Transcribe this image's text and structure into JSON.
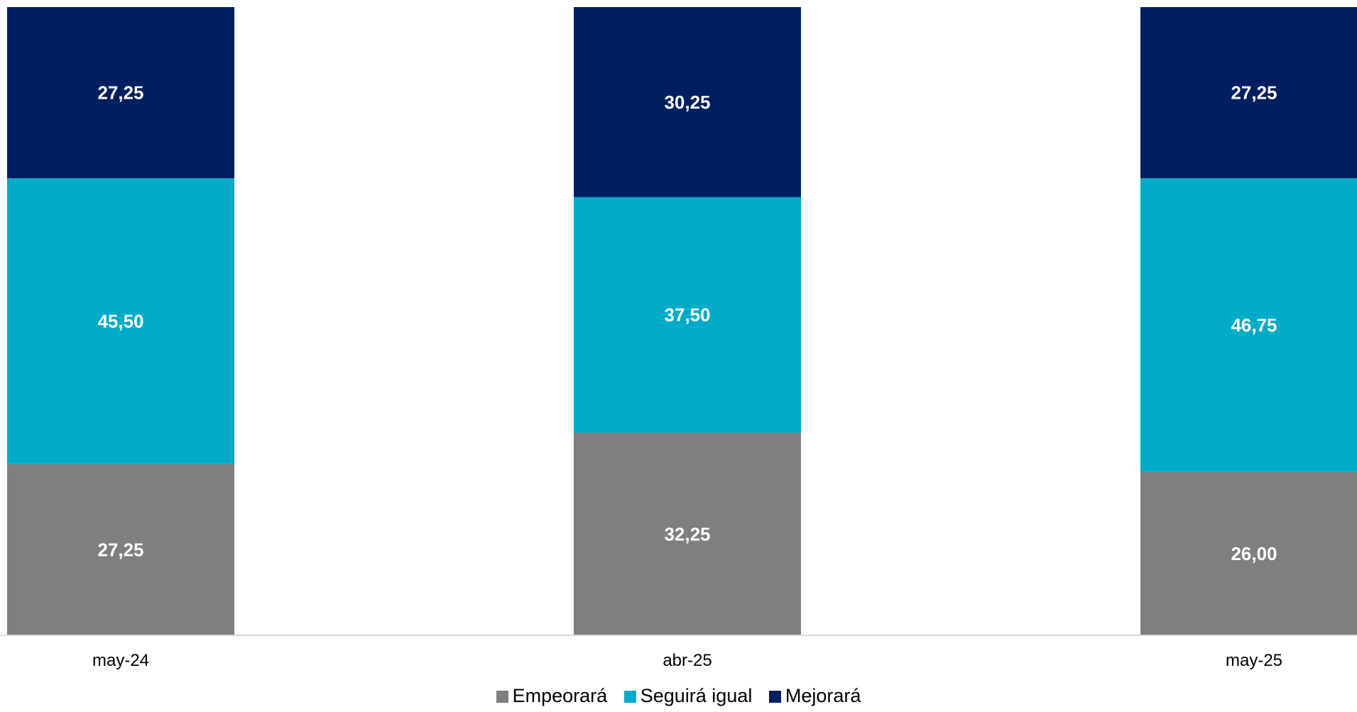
{
  "chart_data": {
    "type": "bar",
    "stacked": true,
    "categories": [
      "may-24",
      "abr-25",
      "may-25"
    ],
    "series": [
      {
        "name": "Empeorará",
        "color": "#7f7f7f",
        "values": [
          27.25,
          32.25,
          26.0
        ],
        "labels": [
          "27,25",
          "32,25",
          "26,00"
        ]
      },
      {
        "name": "Seguirá igual",
        "color": "#00acc8",
        "values": [
          45.5,
          37.5,
          46.75
        ],
        "labels": [
          "45,50",
          "37,50",
          "46,75"
        ]
      },
      {
        "name": "Mejorará",
        "color": "#001f60",
        "values": [
          27.25,
          30.25,
          27.25
        ],
        "labels": [
          "27,25",
          "30,25",
          "27,25"
        ]
      }
    ],
    "ylim": [
      0,
      100
    ],
    "grid": false,
    "legend_position": "bottom"
  }
}
